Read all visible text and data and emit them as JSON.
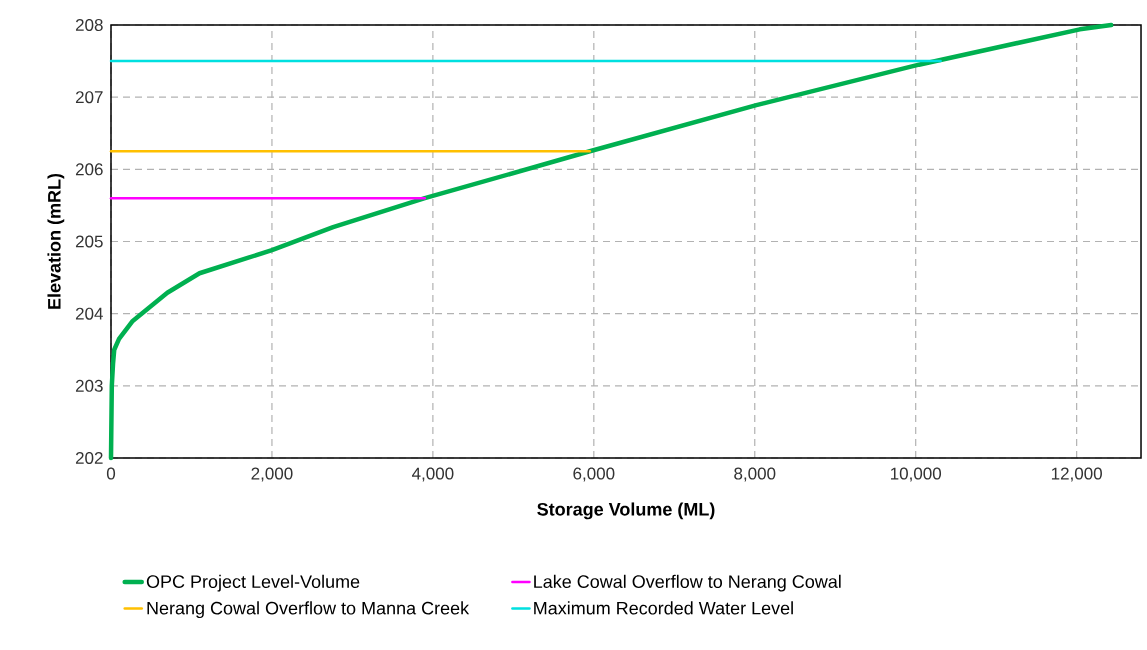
{
  "chart_data": {
    "type": "line",
    "xlabel": "Storage Volume (ML)",
    "ylabel": "Elevation (mRL)",
    "xlim": [
      0,
      12800
    ],
    "ylim": [
      202,
      208
    ],
    "xticks": [
      0,
      {
        "value": 2000,
        "label": "2,000"
      },
      {
        "value": 4000,
        "label": "4,000"
      },
      {
        "value": 6000,
        "label": "6,000"
      },
      {
        "value": 8000,
        "label": "8,000"
      },
      {
        "value": 10000,
        "label": "10,000"
      },
      {
        "value": 12000,
        "label": "12,000"
      }
    ],
    "yticks": [
      202,
      203,
      204,
      205,
      206,
      207,
      208
    ],
    "grid": true,
    "legend": "bottom",
    "line_style": "solid",
    "series": [
      {
        "name": "OPC Project Level-Volume",
        "color": "#00b050",
        "x": [
          0,
          10,
          25,
          40,
          100,
          270,
          700,
          1100,
          2000,
          2760,
          3900,
          5950,
          8020,
          10040,
          12040,
          12430
        ],
        "values": [
          202,
          203,
          203.3,
          203.5,
          203.65,
          203.9,
          204.29,
          204.56,
          204.88,
          205.2,
          205.6,
          206.25,
          206.89,
          207.45,
          207.94,
          208
        ]
      },
      {
        "name": "Lake Cowal Overflow to Nerang Cowal",
        "color": "#ff00ff",
        "x": [
          0,
          3900
        ],
        "values": [
          205.6,
          205.6
        ]
      },
      {
        "name": "Nerang Cowal Overflow to Manna Creek",
        "color": "#ffc000",
        "x": [
          0,
          5950
        ],
        "values": [
          206.25,
          206.25
        ]
      },
      {
        "name": "Maximum Recorded Water Level",
        "color": "#00e0e0",
        "x": [
          0,
          10310
        ],
        "values": [
          207.5,
          207.5
        ]
      }
    ]
  }
}
